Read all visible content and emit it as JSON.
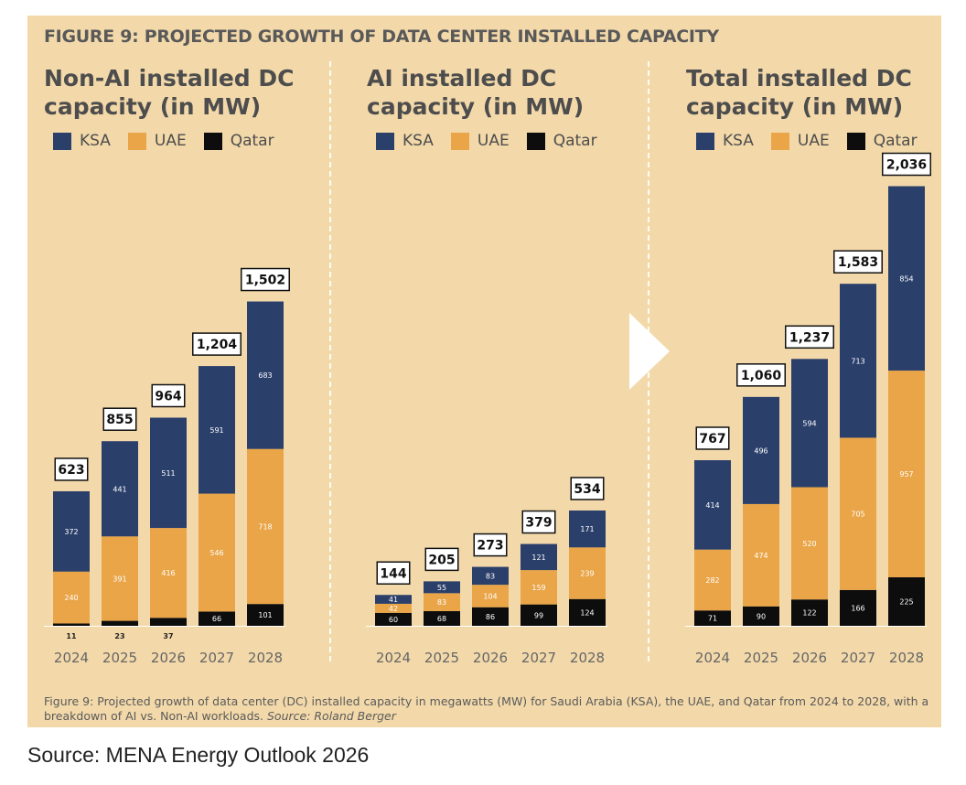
{
  "figure_title": "FIGURE 9: PROJECTED GROWTH OF DATA CENTER INSTALLED CAPACITY",
  "caption": "Figure 9: Projected growth of data center (DC) installed capacity in megawatts (MW) for Saudi Arabia (KSA), the UAE, and Qatar from 2024 to 2028, with a breakdown of AI vs. Non-AI workloads.",
  "caption_source": "Source: Roland Berger",
  "footer_source": "Source: MENA Energy Outlook 2026",
  "colors": {
    "KSA": "#2b3f6b",
    "UAE": "#e9a548",
    "Qatar": "#0d0d0d"
  },
  "chart_data": [
    {
      "type": "bar",
      "stacked": true,
      "title": "Non-AI installed DC capacity (in MW)",
      "legend": [
        "KSA",
        "UAE",
        "Qatar"
      ],
      "categories": [
        "2024",
        "2025",
        "2026",
        "2027",
        "2028"
      ],
      "series": [
        {
          "name": "Qatar",
          "values": [
            11,
            23,
            37,
            66,
            101
          ]
        },
        {
          "name": "UAE",
          "values": [
            240,
            391,
            416,
            546,
            718
          ]
        },
        {
          "name": "KSA",
          "values": [
            372,
            441,
            511,
            591,
            683
          ]
        }
      ],
      "totals": [
        "623",
        "855",
        "964",
        "1,204",
        "1,502"
      ]
    },
    {
      "type": "bar",
      "stacked": true,
      "title": "AI installed DC capacity (in MW)",
      "legend": [
        "KSA",
        "UAE",
        "Qatar"
      ],
      "categories": [
        "2024",
        "2025",
        "2026",
        "2027",
        "2028"
      ],
      "series": [
        {
          "name": "Qatar",
          "values": [
            60,
            68,
            86,
            99,
            124
          ]
        },
        {
          "name": "UAE",
          "values": [
            42,
            83,
            104,
            159,
            239
          ]
        },
        {
          "name": "KSA",
          "values": [
            41,
            55,
            83,
            121,
            171
          ]
        }
      ],
      "totals": [
        "144",
        "205",
        "273",
        "379",
        "534"
      ]
    },
    {
      "type": "bar",
      "stacked": true,
      "title": "Total installed DC capacity (in MW)",
      "legend": [
        "KSA",
        "UAE",
        "Qatar"
      ],
      "categories": [
        "2024",
        "2025",
        "2026",
        "2027",
        "2028"
      ],
      "series": [
        {
          "name": "Qatar",
          "values": [
            71,
            90,
            122,
            166,
            225
          ]
        },
        {
          "name": "UAE",
          "values": [
            282,
            474,
            520,
            705,
            957
          ]
        },
        {
          "name": "KSA",
          "values": [
            414,
            496,
            594,
            713,
            854
          ]
        }
      ],
      "totals": [
        "767",
        "1,060",
        "1,237",
        "1,583",
        "2,036"
      ]
    }
  ]
}
